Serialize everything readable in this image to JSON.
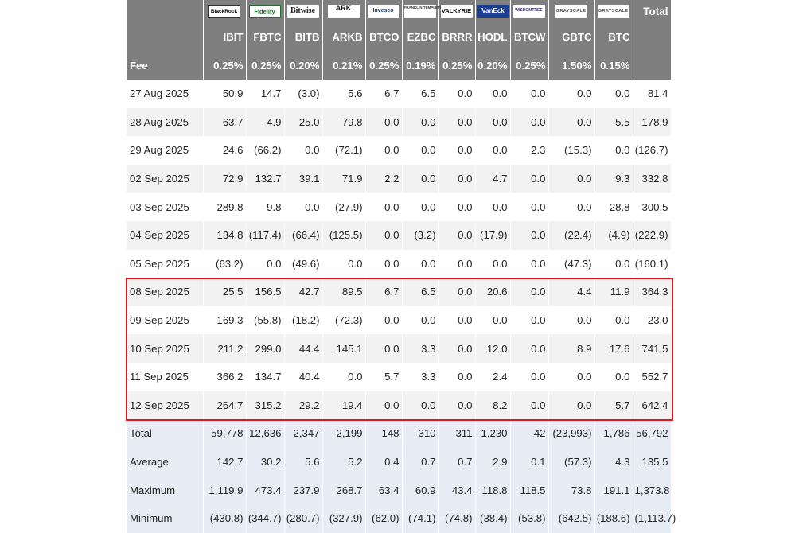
{
  "logos": [
    {
      "label": "BlackRock",
      "cls": "blackrock",
      "icon": "blackrock-logo"
    },
    {
      "label": "Fidelity",
      "cls": "fidelity",
      "icon": "fidelity-logo"
    },
    {
      "label": "Bitwise",
      "cls": "bitwise",
      "icon": "bitwise-logo"
    },
    {
      "label": "ARK",
      "cls": "ark",
      "icon": "ark-invest-logo"
    },
    {
      "label": "Invesco",
      "cls": "invesco",
      "icon": "invesco-logo"
    },
    {
      "label": "FRANKLIN TEMPLETON",
      "cls": "franklin",
      "icon": "franklin-templeton-logo"
    },
    {
      "label": "VALKYRIE",
      "cls": "valkyrie",
      "icon": "valkyrie-logo"
    },
    {
      "label": "VanEck",
      "cls": "vaneck",
      "icon": "vaneck-logo"
    },
    {
      "label": "WISDOMTREE",
      "cls": "wisdomtree",
      "icon": "wisdomtree-logo"
    },
    {
      "label": "GRAYSCALE",
      "cls": "grayscale",
      "icon": "grayscale-logo"
    },
    {
      "label": "GRAYSCALE",
      "cls": "grayscale",
      "icon": "grayscale-logo"
    }
  ],
  "total_header": "Total",
  "tickers": [
    "IBIT",
    "FBTC",
    "BITB",
    "ARKB",
    "BTCO",
    "EZBC",
    "BRRR",
    "HODL",
    "BTCW",
    "GBTC",
    "BTC"
  ],
  "fee_label": "Fee",
  "fees": [
    "0.25%",
    "0.25%",
    "0.20%",
    "0.21%",
    "0.25%",
    "0.19%",
    "0.25%",
    "0.20%",
    "0.25%",
    "1.50%",
    "0.15%"
  ],
  "rows": [
    {
      "date": "27 Aug 2025",
      "values": [
        "50.9",
        "14.7",
        "(3.0)",
        "5.6",
        "6.7",
        "6.5",
        "0.0",
        "0.0",
        "0.0",
        "0.0",
        "0.0"
      ],
      "total": "81.4"
    },
    {
      "date": "28 Aug 2025",
      "values": [
        "63.7",
        "4.9",
        "25.0",
        "79.8",
        "0.0",
        "0.0",
        "0.0",
        "0.0",
        "0.0",
        "0.0",
        "5.5"
      ],
      "total": "178.9"
    },
    {
      "date": "29 Aug 2025",
      "values": [
        "24.6",
        "(66.2)",
        "0.0",
        "(72.1)",
        "0.0",
        "0.0",
        "0.0",
        "0.0",
        "2.3",
        "(15.3)",
        "0.0"
      ],
      "total": "(126.7)"
    },
    {
      "date": "02 Sep 2025",
      "values": [
        "72.9",
        "132.7",
        "39.1",
        "71.9",
        "2.2",
        "0.0",
        "0.0",
        "4.7",
        "0.0",
        "0.0",
        "9.3"
      ],
      "total": "332.8"
    },
    {
      "date": "03 Sep 2025",
      "values": [
        "289.8",
        "9.8",
        "0.0",
        "(27.9)",
        "0.0",
        "0.0",
        "0.0",
        "0.0",
        "0.0",
        "0.0",
        "28.8"
      ],
      "total": "300.5"
    },
    {
      "date": "04 Sep 2025",
      "values": [
        "134.8",
        "(117.4)",
        "(66.4)",
        "(125.5)",
        "0.0",
        "(3.2)",
        "0.0",
        "(17.9)",
        "0.0",
        "(22.4)",
        "(4.9)"
      ],
      "total": "(222.9)"
    },
    {
      "date": "05 Sep 2025",
      "values": [
        "(63.2)",
        "0.0",
        "(49.6)",
        "0.0",
        "0.0",
        "0.0",
        "0.0",
        "0.0",
        "0.0",
        "(47.3)",
        "0.0"
      ],
      "total": "(160.1)"
    },
    {
      "date": "08 Sep 2025",
      "values": [
        "25.5",
        "156.5",
        "42.7",
        "89.5",
        "6.7",
        "6.5",
        "0.0",
        "20.6",
        "0.0",
        "4.4",
        "11.9"
      ],
      "total": "364.3"
    },
    {
      "date": "09 Sep 2025",
      "values": [
        "169.3",
        "(55.8)",
        "(18.2)",
        "(72.3)",
        "0.0",
        "0.0",
        "0.0",
        "0.0",
        "0.0",
        "0.0",
        "0.0"
      ],
      "total": "23.0"
    },
    {
      "date": "10 Sep 2025",
      "values": [
        "211.2",
        "299.0",
        "44.4",
        "145.1",
        "0.0",
        "3.3",
        "0.0",
        "12.0",
        "0.0",
        "8.9",
        "17.6"
      ],
      "total": "741.5"
    },
    {
      "date": "11 Sep 2025",
      "values": [
        "366.2",
        "134.7",
        "40.4",
        "0.0",
        "5.7",
        "3.3",
        "0.0",
        "2.4",
        "0.0",
        "0.0",
        "0.0"
      ],
      "total": "552.7"
    },
    {
      "date": "12 Sep 2025",
      "values": [
        "264.7",
        "315.2",
        "29.2",
        "19.4",
        "0.0",
        "0.0",
        "0.0",
        "8.2",
        "0.0",
        "0.0",
        "5.7"
      ],
      "total": "642.4"
    }
  ],
  "summary": [
    {
      "label": "Total",
      "values": [
        "59,778",
        "12,636",
        "2,347",
        "2,199",
        "148",
        "310",
        "311",
        "1,230",
        "42",
        "(23,993)",
        "1,786"
      ],
      "total": "56,792"
    },
    {
      "label": "Average",
      "values": [
        "142.7",
        "30.2",
        "5.6",
        "5.2",
        "0.4",
        "0.7",
        "0.7",
        "2.9",
        "0.1",
        "(57.3)",
        "4.3"
      ],
      "total": "135.5"
    },
    {
      "label": "Maximum",
      "values": [
        "1,119.9",
        "473.4",
        "237.9",
        "268.7",
        "63.4",
        "60.9",
        "43.4",
        "118.8",
        "118.5",
        "73.8",
        "191.1"
      ],
      "total": "1,373.8"
    },
    {
      "label": "Minimum",
      "values": [
        "(430.8)",
        "(344.7)",
        "(280.7)",
        "(327.9)",
        "(62.0)",
        "(74.1)",
        "(74.8)",
        "(38.4)",
        "(53.8)",
        "(642.5)",
        "(188.6)"
      ],
      "total": "(1,113.7)"
    }
  ],
  "colors": {
    "header_bg": "#7f7f7f",
    "negative": "#d71b1b",
    "highlight": "#e2141e",
    "summary_bg": "#e8ecf5"
  }
}
